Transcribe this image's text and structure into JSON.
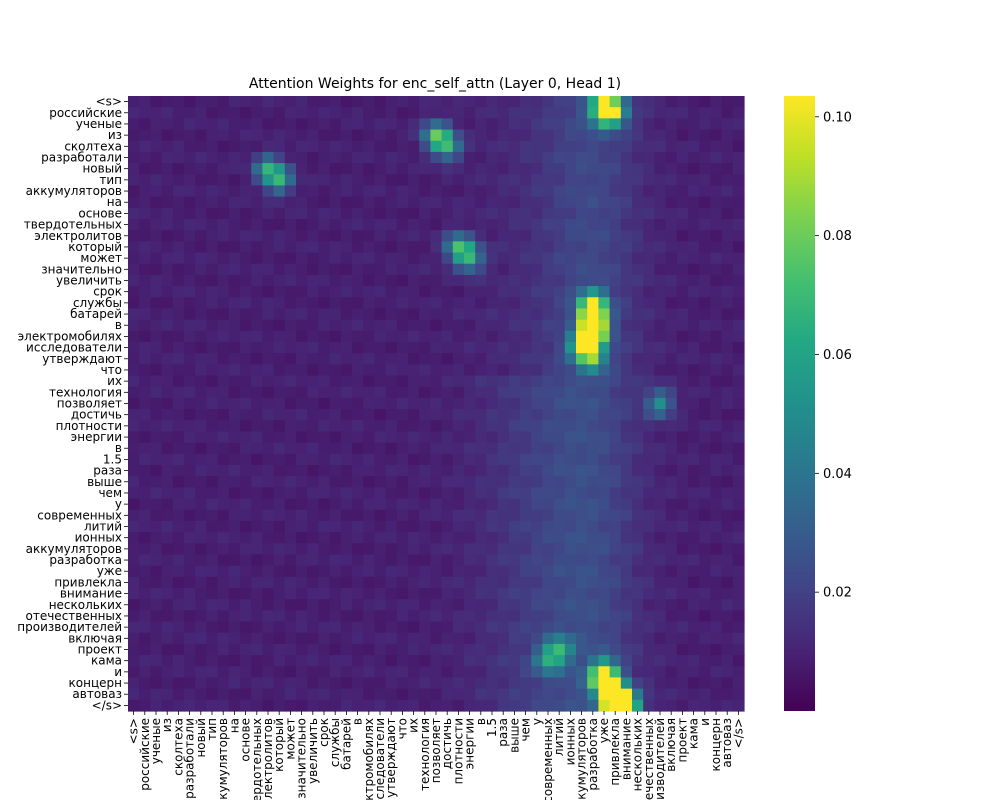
{
  "chart_data": {
    "type": "heatmap",
    "title": "Attention Weights for enc_self_attn (Layer 0, Head 1)",
    "xlabel": "",
    "ylabel": "",
    "colormap": "viridis",
    "value_range": [
      0.0,
      0.1035
    ],
    "colorbar_ticks": [
      0.02,
      0.04,
      0.06,
      0.08,
      0.1
    ],
    "colorbar_tick_labels": [
      "0.02",
      "0.04",
      "0.06",
      "0.08",
      "0.10"
    ],
    "tokens": [
      "<s>",
      "российские",
      "ученые",
      "из",
      "сколтеха",
      "разработали",
      "новый",
      "тип",
      "аккумуляторов",
      "на",
      "основе",
      "твердотельных",
      "электролитов",
      "который",
      "может",
      "значительно",
      "увеличить",
      "срок",
      "службы",
      "батарей",
      "в",
      "электромобилях",
      "исследователи",
      "утверждают",
      "что",
      "их",
      "технология",
      "позволяет",
      "достичь",
      "плотности",
      "энергии",
      "в",
      "1.5",
      "раза",
      "выше",
      "чем",
      "у",
      "современных",
      "литий",
      "ионных",
      "аккумуляторов",
      "разработка",
      "уже",
      "привлекла",
      "внимание",
      "нескольких",
      "отечественных",
      "производителей",
      "включая",
      "проект",
      "кама",
      "и",
      "концерн",
      "автоваз",
      "</s>"
    ],
    "hotspots": [
      {
        "row": 1,
        "col": 42,
        "value": 0.075
      },
      {
        "row": 1,
        "col": 43,
        "value": 0.06
      },
      {
        "row": 0,
        "col": 42,
        "value": 0.055
      },
      {
        "row": 3,
        "col": 27,
        "value": 0.068
      },
      {
        "row": 4,
        "col": 28,
        "value": 0.062
      },
      {
        "row": 6,
        "col": 12,
        "value": 0.058
      },
      {
        "row": 7,
        "col": 13,
        "value": 0.06
      },
      {
        "row": 13,
        "col": 29,
        "value": 0.064
      },
      {
        "row": 14,
        "col": 30,
        "value": 0.06
      },
      {
        "row": 18,
        "col": 41,
        "value": 0.072
      },
      {
        "row": 19,
        "col": 41,
        "value": 0.074
      },
      {
        "row": 20,
        "col": 41,
        "value": 0.082
      },
      {
        "row": 21,
        "col": 41,
        "value": 0.086
      },
      {
        "row": 22,
        "col": 40,
        "value": 0.07
      },
      {
        "row": 23,
        "col": 41,
        "value": 0.06
      },
      {
        "row": 27,
        "col": 47,
        "value": 0.052
      },
      {
        "row": 49,
        "col": 38,
        "value": 0.052
      },
      {
        "row": 50,
        "col": 37,
        "value": 0.048
      },
      {
        "row": 51,
        "col": 42,
        "value": 0.07
      },
      {
        "row": 52,
        "col": 42,
        "value": 0.085
      },
      {
        "row": 53,
        "col": 43,
        "value": 0.095
      },
      {
        "row": 54,
        "col": 43,
        "value": 0.1035
      },
      {
        "row": 54,
        "col": 44,
        "value": 0.09
      }
    ]
  }
}
